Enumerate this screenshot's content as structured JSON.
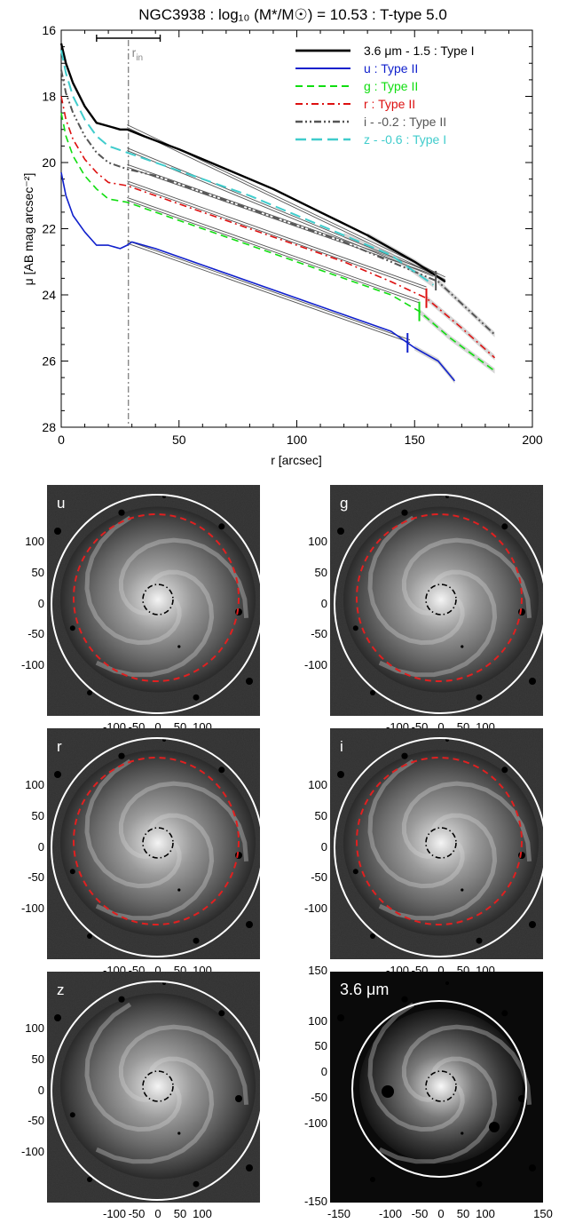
{
  "chart_data": {
    "type": "line",
    "title": "NGC3938 : log₁₀ (M*/M☉) = 10.53 : T-type 5.0",
    "xlabel": "r [arcsec]",
    "ylabel": "μ [AB mag arcsec⁻²]",
    "xlim": [
      0,
      200
    ],
    "ylim": [
      28,
      16
    ],
    "xticks": [
      "0",
      "50",
      "100",
      "150",
      "200"
    ],
    "yticks": [
      "16",
      "18",
      "20",
      "22",
      "24",
      "26",
      "28"
    ],
    "rin_label": "rin",
    "rin_value": 28.5,
    "rin_errbar": [
      15,
      42
    ],
    "legend_position": "top-right",
    "series": [
      {
        "name": "3.6 μm - 1.5 : Type I",
        "color": "#000000",
        "dash": "",
        "width": 2.4,
        "x": [
          0,
          2,
          5,
          10,
          15,
          20,
          25,
          28,
          35,
          50,
          70,
          90,
          110,
          130,
          150,
          163
        ],
        "y": [
          16.4,
          17.0,
          17.6,
          18.3,
          18.8,
          18.9,
          19.0,
          19.0,
          19.2,
          19.6,
          20.2,
          20.8,
          21.5,
          22.2,
          23.0,
          23.6
        ],
        "fit": [
          [
            28,
            18.9
          ],
          [
            163,
            23.5
          ]
        ],
        "break": null
      },
      {
        "name": "u : Type II",
        "color": "#1020cc",
        "dash": "",
        "width": 1.6,
        "x": [
          0,
          2,
          5,
          10,
          15,
          20,
          25,
          28,
          30,
          40,
          60,
          80,
          100,
          120,
          140,
          150,
          160,
          167
        ],
        "y": [
          20.3,
          21.0,
          21.6,
          22.1,
          22.5,
          22.5,
          22.6,
          22.5,
          22.4,
          22.6,
          23.1,
          23.6,
          24.1,
          24.6,
          25.1,
          25.6,
          26.0,
          26.6
        ],
        "fit": [
          [
            28,
            22.4
          ],
          [
            148,
            25.4
          ]
        ],
        "break": 147
      },
      {
        "name": "g : Type II",
        "color": "#10dd10",
        "dash": "8,5",
        "width": 1.6,
        "x": [
          0,
          2,
          5,
          10,
          15,
          20,
          28,
          40,
          60,
          80,
          100,
          120,
          140,
          152,
          165,
          184
        ],
        "y": [
          18.5,
          19.2,
          19.8,
          20.4,
          20.8,
          21.1,
          21.2,
          21.5,
          22.0,
          22.5,
          23.0,
          23.5,
          24.0,
          24.5,
          25.3,
          26.3
        ],
        "fit": [
          [
            28,
            21.1
          ],
          [
            152,
            24.2
          ]
        ],
        "break": 152
      },
      {
        "name": "r : Type II",
        "color": "#dd1010",
        "dash": "8,4,2,4",
        "width": 1.6,
        "x": [
          0,
          2,
          5,
          10,
          15,
          20,
          28,
          40,
          60,
          80,
          100,
          120,
          140,
          155,
          170,
          184
        ],
        "y": [
          18.0,
          18.7,
          19.3,
          19.9,
          20.3,
          20.6,
          20.7,
          21.0,
          21.5,
          22.0,
          22.5,
          23.0,
          23.6,
          24.1,
          25.0,
          25.9
        ],
        "fit": [
          [
            28,
            20.6
          ],
          [
            155,
            23.8
          ]
        ],
        "break": 155
      },
      {
        "name": "i - -0.2 : Type II",
        "color": "#555555",
        "dash": "8,3,2,3,2,3",
        "width": 2.0,
        "x": [
          0,
          2,
          5,
          10,
          15,
          20,
          28,
          40,
          60,
          80,
          100,
          120,
          140,
          160,
          172,
          184
        ],
        "y": [
          17.2,
          17.9,
          18.5,
          19.2,
          19.7,
          20.0,
          20.2,
          20.4,
          20.9,
          21.4,
          21.9,
          22.4,
          23.0,
          23.6,
          24.4,
          25.2
        ],
        "fit": [
          [
            28,
            20.1
          ],
          [
            160,
            23.4
          ]
        ],
        "break": 159
      },
      {
        "name": "z - -0.6 : Type I",
        "color": "#40cccc",
        "dash": "12,6",
        "width": 2.0,
        "x": [
          0,
          2,
          5,
          10,
          15,
          20,
          28,
          40,
          60,
          80,
          100,
          120,
          140,
          158
        ],
        "y": [
          16.6,
          17.3,
          18.0,
          18.7,
          19.2,
          19.5,
          19.7,
          20.0,
          20.5,
          21.0,
          21.6,
          22.2,
          22.8,
          23.7
        ],
        "fit": [
          [
            28,
            19.6
          ],
          [
            158,
            23.4
          ]
        ],
        "break": null
      }
    ]
  },
  "panels": [
    {
      "label": "u",
      "ticks_x": [
        "-100",
        "-50",
        "0",
        "50",
        "100"
      ],
      "ticks_y": [
        "100",
        "50",
        "0",
        "-50",
        "-100"
      ],
      "has_red": true
    },
    {
      "label": "g",
      "ticks_x": [
        "-100",
        "-50",
        "0",
        "50",
        "100"
      ],
      "ticks_y": [
        "100",
        "50",
        "0",
        "-50",
        "-100"
      ],
      "has_red": true
    },
    {
      "label": "r",
      "ticks_x": [
        "-100",
        "-50",
        "0",
        "50",
        "100"
      ],
      "ticks_y": [
        "100",
        "50",
        "0",
        "-50",
        "-100"
      ],
      "has_red": true
    },
    {
      "label": "i",
      "ticks_x": [
        "-100",
        "-50",
        "0",
        "50",
        "100"
      ],
      "ticks_y": [
        "100",
        "50",
        "0",
        "-50",
        "-100"
      ],
      "has_red": true
    },
    {
      "label": "z",
      "ticks_x": [
        "-100",
        "-50",
        "0",
        "50",
        "100"
      ],
      "ticks_y": [
        "100",
        "50",
        "0",
        "-50",
        "-100"
      ],
      "has_red": false
    },
    {
      "label": "3.6 μm",
      "ticks_x": [
        "-150",
        "-100",
        "-50",
        "0",
        "50",
        "100",
        "150"
      ],
      "ticks_y": [
        "150",
        "100",
        "50",
        "0",
        "-50",
        "-100",
        "-150"
      ],
      "has_red": false
    }
  ]
}
